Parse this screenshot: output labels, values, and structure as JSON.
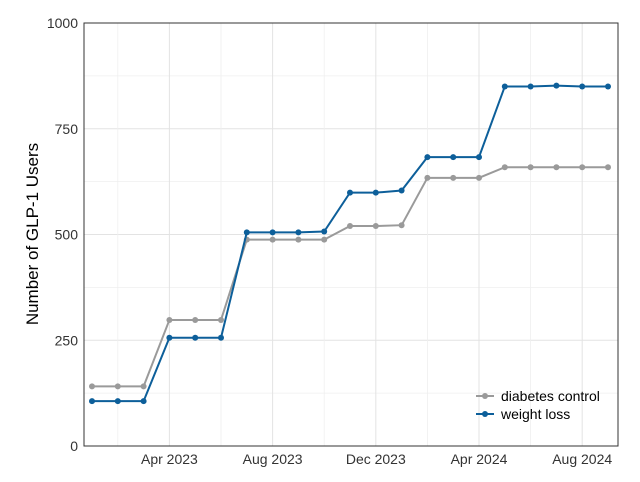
{
  "chart_data": {
    "type": "line",
    "title": "",
    "xlabel": "",
    "ylabel": "Number of GLP-1 Users",
    "x": [
      "2023-01",
      "2023-02",
      "2023-03",
      "2023-04",
      "2023-05",
      "2023-06",
      "2023-07",
      "2023-08",
      "2023-09",
      "2023-10",
      "2023-11",
      "2023-12",
      "2024-01",
      "2024-02",
      "2024-03",
      "2024-04",
      "2024-05",
      "2024-06",
      "2024-07",
      "2024-08",
      "2024-09"
    ],
    "x_ticks": [
      {
        "value": "2023-04",
        "label": "Apr 2023"
      },
      {
        "value": "2023-08",
        "label": "Aug 2023"
      },
      {
        "value": "2023-12",
        "label": "Dec 2023"
      },
      {
        "value": "2024-04",
        "label": "Apr 2024"
      },
      {
        "value": "2024-08",
        "label": "Aug 2024"
      }
    ],
    "ylim": [
      0,
      1000
    ],
    "y_ticks": [
      0,
      250,
      500,
      750,
      1000
    ],
    "grid": true,
    "legend_position": "bottom-right",
    "series": [
      {
        "name": "diabetes control",
        "color": "#9a9a9a",
        "values": [
          141,
          141,
          141,
          298,
          298,
          298,
          488,
          488,
          488,
          488,
          520,
          520,
          522,
          634,
          634,
          634,
          659,
          659,
          659,
          659,
          659
        ]
      },
      {
        "name": "weight loss",
        "color": "#0d5f9a",
        "values": [
          106,
          106,
          106,
          256,
          256,
          256,
          505,
          505,
          505,
          507,
          599,
          599,
          604,
          683,
          683,
          683,
          850,
          850,
          852,
          850,
          850
        ]
      }
    ]
  }
}
